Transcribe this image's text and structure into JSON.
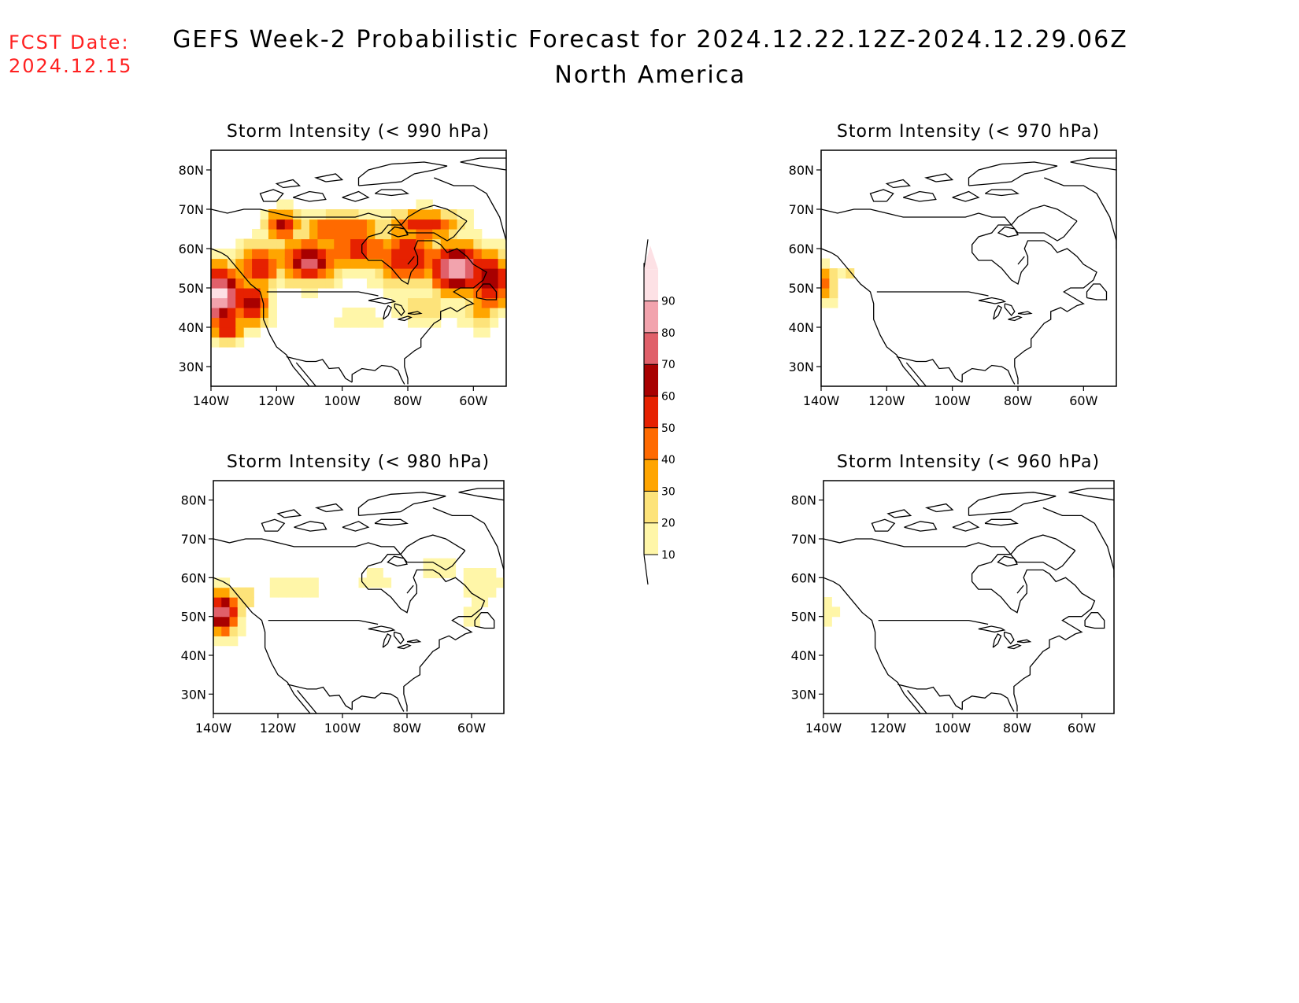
{
  "header": {
    "fcst_label": "FCST Date:",
    "fcst_date": "2024.12.15",
    "title_line1": "GEFS Week-2 Probabilistic Forecast for 2024.12.22.12Z-2024.12.29.06Z",
    "title_line2": "North America",
    "fcst_color": "#ff2020"
  },
  "map_axes": {
    "lat_labels": [
      "80N",
      "70N",
      "60N",
      "50N",
      "40N",
      "30N"
    ],
    "lon_labels": [
      "140W",
      "120W",
      "100W",
      "80W",
      "60W"
    ],
    "lat_values": [
      80,
      70,
      60,
      50,
      40,
      30
    ],
    "lon_values": [
      -140,
      -120,
      -100,
      -80,
      -60
    ],
    "lon_range": [
      -140,
      -50
    ],
    "lat_range": [
      25,
      85
    ]
  },
  "panels": [
    {
      "id": "p990",
      "title": "Storm Intensity (< 990 hPa)",
      "coverage": "widespread"
    },
    {
      "id": "p970",
      "title": "Storm Intensity (< 970 hPa)",
      "coverage": "minimal"
    },
    {
      "id": "p980",
      "title": "Storm Intensity (< 980 hPa)",
      "coverage": "moderate"
    },
    {
      "id": "p960",
      "title": "Storm Intensity (< 960 hPa)",
      "coverage": "trace"
    }
  ],
  "colorbar": {
    "labels": [
      "90",
      "80",
      "70",
      "60",
      "50",
      "40",
      "30",
      "20",
      "10"
    ],
    "levels": [
      10,
      20,
      30,
      40,
      50,
      60,
      70,
      80,
      90
    ],
    "colors": [
      "#fff6a8",
      "#fde37a",
      "#ffa500",
      "#ff6a00",
      "#e62100",
      "#a80000",
      "#e0606a",
      "#f2a3ad",
      "#fde1e5"
    ]
  }
}
